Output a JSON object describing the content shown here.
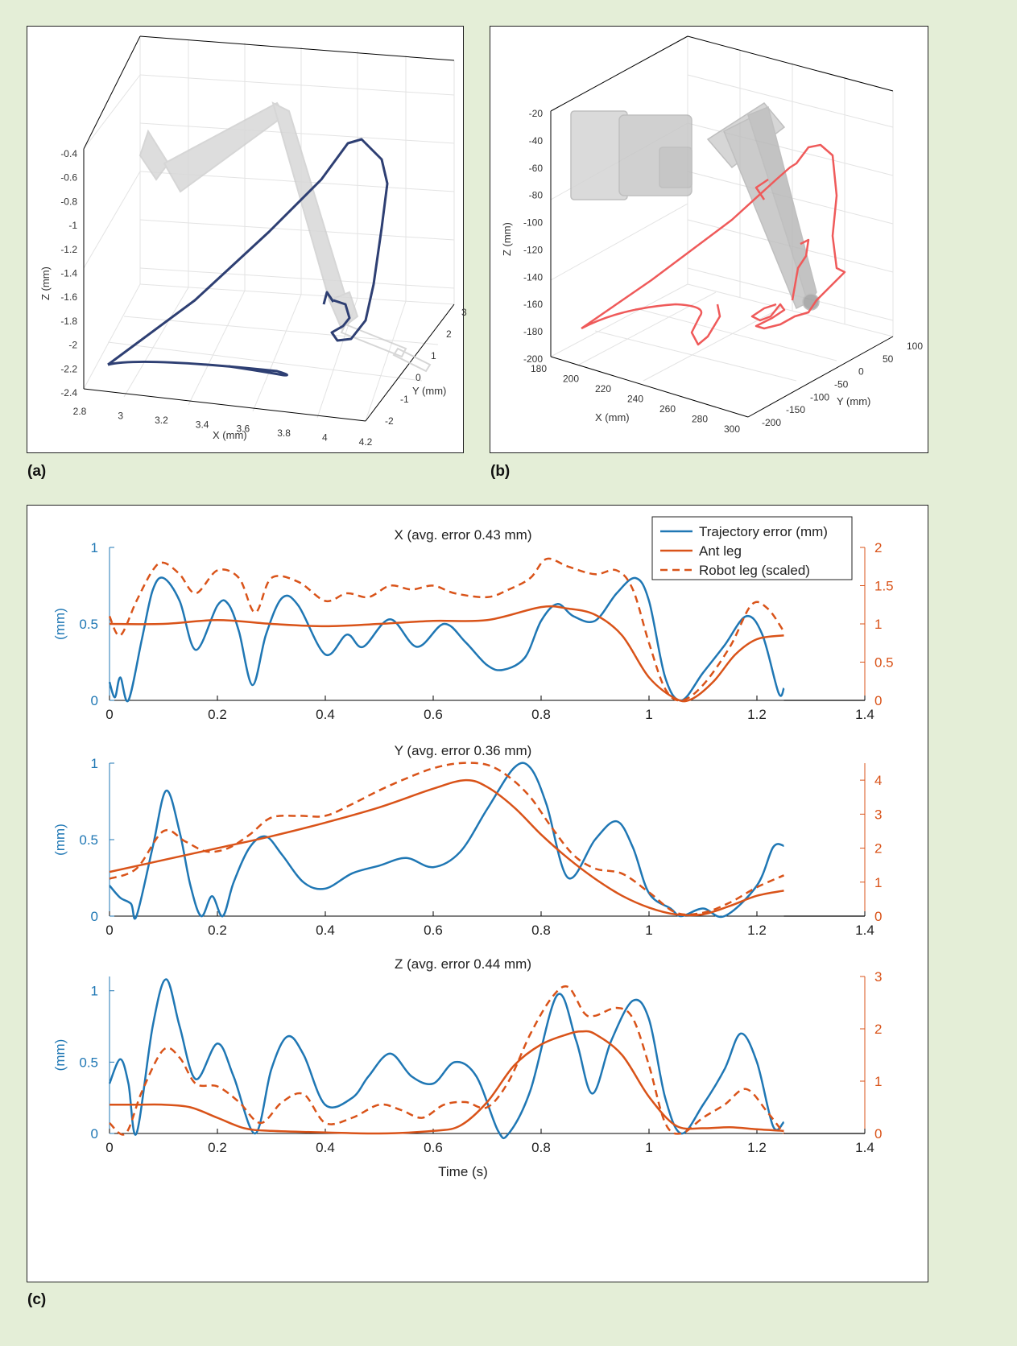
{
  "labels": {
    "a": "(a)",
    "b": "(b)",
    "c": "(c)"
  },
  "colors": {
    "background": "#e4eed7",
    "navy": "#2e3f73",
    "red": "#ef5a5a",
    "blue": "#1f77b4",
    "orange": "#d95319",
    "leg": "#c9c9c9"
  },
  "panel_a": {
    "xlabel": "X (mm)",
    "ylabel": "Y (mm)",
    "zlabel": "Z (mm)",
    "xticks": [
      "2.8",
      "3",
      "3.2",
      "3.4",
      "3.6",
      "3.8",
      "4",
      "4.2"
    ],
    "yticks": [
      "-2",
      "-1",
      "0",
      "1",
      "2",
      "3"
    ],
    "zticks": [
      "-0.4",
      "-0.6",
      "-0.8",
      "-1",
      "-1.2",
      "-1.4",
      "-1.6",
      "-1.8",
      "-2",
      "-2.2",
      "-2.4"
    ]
  },
  "panel_b": {
    "xlabel": "X (mm)",
    "ylabel": "Y (mm)",
    "zlabel": "Z (mm)",
    "xticks": [
      "180",
      "200",
      "220",
      "240",
      "260",
      "280",
      "300"
    ],
    "yticks": [
      "-200",
      "-150",
      "-100",
      "-50",
      "0",
      "50",
      "100"
    ],
    "zticks": [
      "-20",
      "-40",
      "-60",
      "-80",
      "-100",
      "-120",
      "-140",
      "-160",
      "-180",
      "-200"
    ]
  },
  "chart_data": [
    {
      "type": "line",
      "title": "X (avg. error 0.43 mm)",
      "xlabel": "",
      "ylabel": "(mm)",
      "xlim": [
        0,
        1.4
      ],
      "ylim_left": [
        0,
        1
      ],
      "ylim_right": [
        0,
        2
      ],
      "xticks": [
        "0",
        "0.2",
        "0.4",
        "0.6",
        "0.8",
        "1",
        "1.2",
        "1.4"
      ],
      "yticks_left": [
        "0",
        "0.5",
        "1"
      ],
      "yticks_right": [
        "0",
        "0.5",
        "1",
        "1.5",
        "2"
      ],
      "legend": [
        "Trajectory error (mm)",
        "Ant leg",
        "Robot leg (scaled)"
      ],
      "series": [
        {
          "name": "Trajectory error (mm)",
          "axis": "left",
          "style": "solid",
          "x": [
            0,
            0.01,
            0.02,
            0.035,
            0.06,
            0.08,
            0.1,
            0.13,
            0.16,
            0.2,
            0.22,
            0.24,
            0.265,
            0.29,
            0.32,
            0.35,
            0.4,
            0.44,
            0.47,
            0.52,
            0.57,
            0.62,
            0.66,
            0.7,
            0.73,
            0.77,
            0.8,
            0.83,
            0.86,
            0.9,
            0.94,
            0.975,
            1.0,
            1.03,
            1.06,
            1.1,
            1.14,
            1.18,
            1.21,
            1.24,
            1.25
          ],
          "y": [
            0.12,
            0.02,
            0.15,
            0.0,
            0.4,
            0.72,
            0.8,
            0.65,
            0.33,
            0.62,
            0.63,
            0.45,
            0.1,
            0.43,
            0.67,
            0.62,
            0.3,
            0.43,
            0.35,
            0.53,
            0.35,
            0.5,
            0.38,
            0.23,
            0.2,
            0.28,
            0.52,
            0.63,
            0.55,
            0.52,
            0.7,
            0.8,
            0.65,
            0.15,
            0.0,
            0.18,
            0.36,
            0.55,
            0.43,
            0.05,
            0.08
          ]
        },
        {
          "name": "Ant leg",
          "axis": "right",
          "style": "solid",
          "x": [
            0,
            0.1,
            0.2,
            0.3,
            0.4,
            0.5,
            0.6,
            0.7,
            0.8,
            0.85,
            0.9,
            0.95,
            1.0,
            1.05,
            1.08,
            1.12,
            1.16,
            1.2,
            1.25
          ],
          "y": [
            1.0,
            1.0,
            1.05,
            1.0,
            0.97,
            1.0,
            1.04,
            1.05,
            1.22,
            1.2,
            1.12,
            0.85,
            0.3,
            0.02,
            0.02,
            0.25,
            0.6,
            0.8,
            0.85
          ]
        },
        {
          "name": "Robot leg (scaled)",
          "axis": "right",
          "style": "dashed",
          "x": [
            0,
            0.02,
            0.05,
            0.08,
            0.1,
            0.13,
            0.16,
            0.2,
            0.24,
            0.27,
            0.3,
            0.35,
            0.4,
            0.44,
            0.48,
            0.52,
            0.56,
            0.6,
            0.64,
            0.7,
            0.74,
            0.78,
            0.81,
            0.85,
            0.9,
            0.94,
            0.97,
            1.0,
            1.03,
            1.06,
            1.1,
            1.15,
            1.19,
            1.22,
            1.25
          ],
          "y": [
            1.1,
            0.85,
            1.3,
            1.7,
            1.8,
            1.65,
            1.4,
            1.7,
            1.6,
            1.15,
            1.6,
            1.55,
            1.3,
            1.4,
            1.35,
            1.5,
            1.45,
            1.5,
            1.4,
            1.35,
            1.45,
            1.6,
            1.85,
            1.75,
            1.65,
            1.7,
            1.45,
            0.75,
            0.15,
            0.0,
            0.2,
            0.7,
            1.25,
            1.2,
            0.9
          ]
        }
      ]
    },
    {
      "type": "line",
      "title": "Y (avg. error 0.36 mm)",
      "xlabel": "",
      "ylabel": "(mm)",
      "xlim": [
        0,
        1.4
      ],
      "ylim_left": [
        0,
        1
      ],
      "ylim_right": [
        0,
        4.5
      ],
      "xticks": [
        "0",
        "0.2",
        "0.4",
        "0.6",
        "0.8",
        "1",
        "1.2",
        "1.4"
      ],
      "yticks_left": [
        "0",
        "0.5",
        "1"
      ],
      "yticks_right": [
        "0",
        "1",
        "2",
        "3",
        "4"
      ],
      "series": [
        {
          "name": "Trajectory error (mm)",
          "axis": "left",
          "style": "solid",
          "x": [
            0,
            0.02,
            0.04,
            0.05,
            0.08,
            0.105,
            0.13,
            0.15,
            0.17,
            0.19,
            0.21,
            0.23,
            0.26,
            0.29,
            0.32,
            0.36,
            0.4,
            0.45,
            0.5,
            0.55,
            0.6,
            0.65,
            0.7,
            0.75,
            0.78,
            0.81,
            0.85,
            0.9,
            0.94,
            0.97,
            1.0,
            1.04,
            1.06,
            1.1,
            1.14,
            1.2,
            1.23,
            1.25
          ],
          "y": [
            0.2,
            0.12,
            0.08,
            0.0,
            0.45,
            0.82,
            0.55,
            0.2,
            0.0,
            0.13,
            0.0,
            0.22,
            0.45,
            0.52,
            0.4,
            0.22,
            0.18,
            0.28,
            0.33,
            0.38,
            0.32,
            0.42,
            0.7,
            0.97,
            0.97,
            0.73,
            0.25,
            0.5,
            0.62,
            0.45,
            0.15,
            0.05,
            0.0,
            0.05,
            0.0,
            0.2,
            0.45,
            0.46
          ]
        },
        {
          "name": "Ant leg",
          "axis": "right",
          "style": "solid",
          "x": [
            0,
            0.1,
            0.2,
            0.3,
            0.4,
            0.5,
            0.6,
            0.66,
            0.7,
            0.75,
            0.8,
            0.85,
            0.9,
            0.95,
            1.0,
            1.05,
            1.1,
            1.15,
            1.2,
            1.25
          ],
          "y": [
            1.3,
            1.65,
            2.0,
            2.35,
            2.75,
            3.2,
            3.75,
            4.0,
            3.8,
            3.2,
            2.4,
            1.7,
            1.1,
            0.6,
            0.25,
            0.05,
            0.05,
            0.3,
            0.6,
            0.75
          ]
        },
        {
          "name": "Robot leg (scaled)",
          "axis": "right",
          "style": "dashed",
          "x": [
            0,
            0.05,
            0.1,
            0.14,
            0.18,
            0.22,
            0.26,
            0.3,
            0.35,
            0.4,
            0.45,
            0.5,
            0.55,
            0.6,
            0.65,
            0.7,
            0.74,
            0.78,
            0.82,
            0.86,
            0.9,
            0.95,
            1.0,
            1.05,
            1.1,
            1.15,
            1.2,
            1.25
          ],
          "y": [
            1.1,
            1.4,
            2.5,
            2.2,
            1.9,
            2.0,
            2.4,
            2.9,
            2.95,
            2.95,
            3.3,
            3.7,
            4.05,
            4.35,
            4.5,
            4.45,
            4.1,
            3.5,
            2.6,
            1.8,
            1.4,
            1.25,
            0.7,
            0.1,
            0.1,
            0.4,
            0.85,
            1.2
          ]
        }
      ]
    },
    {
      "type": "line",
      "title": "Z (avg. error 0.44 mm)",
      "xlabel": "Time (s)",
      "ylabel": "(mm)",
      "xlim": [
        0,
        1.4
      ],
      "ylim_left": [
        0,
        1.1
      ],
      "ylim_right": [
        0,
        3
      ],
      "xticks": [
        "0",
        "0.2",
        "0.4",
        "0.6",
        "0.8",
        "1",
        "1.2",
        "1.4"
      ],
      "yticks_left": [
        "0",
        "0.5",
        "1"
      ],
      "yticks_right": [
        "0",
        "1",
        "2",
        "3"
      ],
      "series": [
        {
          "name": "Trajectory error (mm)",
          "axis": "left",
          "style": "solid",
          "x": [
            0,
            0.02,
            0.035,
            0.05,
            0.08,
            0.105,
            0.13,
            0.16,
            0.2,
            0.23,
            0.27,
            0.3,
            0.33,
            0.36,
            0.4,
            0.45,
            0.48,
            0.52,
            0.56,
            0.6,
            0.64,
            0.68,
            0.72,
            0.74,
            0.78,
            0.83,
            0.865,
            0.895,
            0.93,
            0.97,
            1.0,
            1.03,
            1.06,
            1.1,
            1.14,
            1.17,
            1.2,
            1.23,
            1.25
          ],
          "y": [
            0.35,
            0.52,
            0.35,
            0.0,
            0.75,
            1.08,
            0.75,
            0.38,
            0.63,
            0.4,
            0.0,
            0.45,
            0.68,
            0.55,
            0.2,
            0.25,
            0.4,
            0.56,
            0.4,
            0.35,
            0.5,
            0.4,
            0.02,
            0.0,
            0.3,
            0.97,
            0.65,
            0.28,
            0.65,
            0.93,
            0.8,
            0.25,
            0.0,
            0.2,
            0.45,
            0.7,
            0.5,
            0.05,
            0.08
          ]
        },
        {
          "name": "Ant leg",
          "axis": "right",
          "style": "solid",
          "x": [
            0,
            0.05,
            0.1,
            0.15,
            0.2,
            0.25,
            0.3,
            0.4,
            0.5,
            0.6,
            0.65,
            0.7,
            0.75,
            0.8,
            0.85,
            0.875,
            0.9,
            0.95,
            1.0,
            1.05,
            1.1,
            1.15,
            1.2,
            1.25
          ],
          "y": [
            0.55,
            0.55,
            0.55,
            0.5,
            0.3,
            0.1,
            0.05,
            0.02,
            0.0,
            0.05,
            0.15,
            0.6,
            1.3,
            1.7,
            1.9,
            1.95,
            1.9,
            1.5,
            0.7,
            0.15,
            0.1,
            0.12,
            0.08,
            0.05
          ]
        },
        {
          "name": "Robot leg (scaled)",
          "axis": "right",
          "style": "dashed",
          "x": [
            0,
            0.03,
            0.06,
            0.1,
            0.13,
            0.16,
            0.2,
            0.24,
            0.28,
            0.32,
            0.36,
            0.4,
            0.45,
            0.5,
            0.54,
            0.58,
            0.62,
            0.66,
            0.7,
            0.74,
            0.78,
            0.82,
            0.85,
            0.88,
            0.9,
            0.94,
            0.97,
            1.0,
            1.03,
            1.06,
            1.1,
            1.14,
            1.18,
            1.22,
            1.25
          ],
          "y": [
            0.2,
            0.0,
            0.8,
            1.6,
            1.45,
            0.95,
            0.9,
            0.6,
            0.2,
            0.6,
            0.75,
            0.2,
            0.3,
            0.55,
            0.45,
            0.3,
            0.55,
            0.6,
            0.5,
            1.0,
            1.9,
            2.6,
            2.8,
            2.3,
            2.25,
            2.4,
            2.2,
            1.3,
            0.2,
            0.0,
            0.3,
            0.55,
            0.85,
            0.4,
            0.0
          ]
        }
      ]
    }
  ]
}
